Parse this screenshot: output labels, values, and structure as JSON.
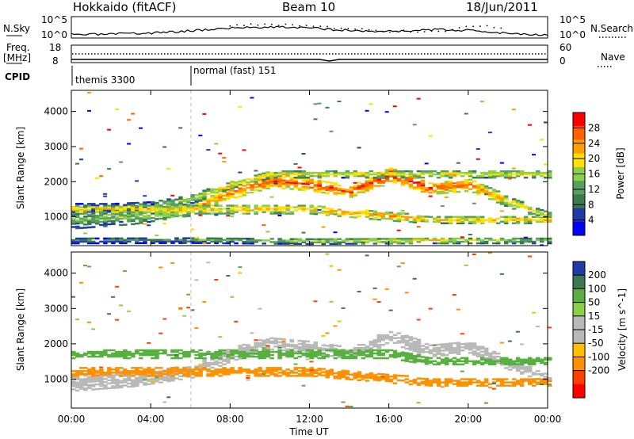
{
  "header": {
    "station": "Hokkaido (fitACF)",
    "beam": "Beam 10",
    "date": "18/Jun/2011"
  },
  "noise_panel": {
    "left_label": "N.Sky",
    "right_label": "N.Search",
    "left_ticks": [
      "10^5",
      "10^0"
    ],
    "right_ticks": [
      "10^5",
      "10^0"
    ]
  },
  "freq_panel": {
    "left_label": "Freq.",
    "left_unit": "[MHz]",
    "left_ticks": [
      "18",
      "8"
    ],
    "right_label": "Nave",
    "right_ticks": [
      "60",
      "0"
    ]
  },
  "cpid_panel": {
    "label": "CPID",
    "segments": [
      {
        "name": "themis 3300",
        "start_hour": 0,
        "end_hour": 6
      },
      {
        "name": "normal (fast) 151",
        "start_hour": 6,
        "end_hour": 24
      }
    ]
  },
  "chart_data": [
    {
      "type": "heatmap",
      "name": "power",
      "xlabel": "Time UT",
      "ylabel": "Slant Range [km]",
      "xlim": [
        0,
        24
      ],
      "ylim": [
        180,
        4600
      ],
      "x_ticks": [
        "00:00",
        "04:00",
        "08:00",
        "12:00",
        "16:00",
        "20:00",
        "00:00"
      ],
      "y_ticks": [
        "1000",
        "2000",
        "3000",
        "4000"
      ],
      "colorbar": {
        "label": "Power [dB]",
        "ticks": [
          "4",
          "8",
          "12",
          "16",
          "20",
          "24",
          "28"
        ],
        "range": [
          0,
          32
        ]
      },
      "bands": [
        {
          "hours": [
            0,
            3,
            6,
            8,
            10,
            12,
            14,
            16,
            18,
            20,
            22,
            24
          ],
          "center_km": [
            900,
            1000,
            1200,
            1700,
            2000,
            1900,
            1700,
            2200,
            1800,
            1900,
            1400,
            1000
          ],
          "width_km": [
            500,
            450,
            350,
            400,
            350,
            350,
            300,
            400,
            350,
            350,
            300,
            250
          ],
          "power_db": [
            14,
            16,
            22,
            26,
            28,
            28,
            28,
            30,
            28,
            26,
            22,
            18
          ]
        },
        {
          "hours": [
            0,
            2,
            4,
            6,
            8,
            10
          ],
          "center_km": [
            1250,
            1250,
            1300,
            1500,
            1900,
            2200
          ],
          "width_km": [
            250,
            250,
            250,
            250,
            200,
            200
          ],
          "power_db": [
            12,
            12,
            14,
            18,
            22,
            20
          ]
        },
        {
          "hours": [
            12,
            14,
            16,
            18
          ],
          "center_km": [
            1200,
            1100,
            1000,
            900
          ],
          "width_km": [
            250,
            250,
            250,
            200
          ],
          "power_db": [
            22,
            24,
            24,
            22
          ]
        },
        {
          "hours": [
            0,
            6,
            12,
            18,
            24
          ],
          "center_km": [
            320,
            330,
            300,
            320,
            320
          ],
          "width_km": [
            180,
            180,
            180,
            180,
            180
          ],
          "power_db": [
            10,
            12,
            16,
            20,
            14
          ]
        }
      ]
    },
    {
      "type": "heatmap",
      "name": "velocity",
      "xlabel": "Time UT",
      "ylabel": "Slant Range [km]",
      "xlim": [
        0,
        24
      ],
      "ylim": [
        180,
        4600
      ],
      "x_ticks": [
        "00:00",
        "04:00",
        "08:00",
        "12:00",
        "16:00",
        "20:00",
        "00:00"
      ],
      "y_ticks": [
        "1000",
        "2000",
        "3000",
        "4000"
      ],
      "colorbar": {
        "label": "Velocity [m s^-1]",
        "ticks": [
          "200",
          "100",
          "50",
          "15",
          "-15",
          "-50",
          "-100",
          "-200"
        ]
      },
      "bands": [
        {
          "hours": [
            0,
            3,
            6,
            8,
            10,
            12,
            14,
            16,
            18,
            20,
            22,
            24
          ],
          "center_km": [
            900,
            1000,
            1200,
            1700,
            2000,
            1900,
            1700,
            2200,
            1800,
            1900,
            1400,
            1000
          ],
          "width_km": [
            500,
            450,
            350,
            400,
            350,
            350,
            300,
            400,
            350,
            350,
            300,
            250
          ],
          "velocity": [
            0,
            0,
            0,
            0,
            0,
            0,
            0,
            0,
            0,
            0,
            0,
            0
          ]
        },
        {
          "hours": [
            12,
            14,
            16,
            18
          ],
          "center_km": [
            1200,
            1100,
            1000,
            900
          ],
          "width_km": [
            250,
            250,
            250,
            200
          ],
          "velocity": [
            -60,
            -60,
            -60,
            -40
          ]
        },
        {
          "hours": [
            16,
            17,
            18
          ],
          "center_km": [
            1700,
            1600,
            1500
          ],
          "width_km": [
            250,
            250,
            200
          ],
          "velocity": [
            40,
            40,
            40
          ]
        }
      ]
    }
  ],
  "colors": {
    "power": [
      "#0000ff",
      "#1e3ca8",
      "#3c7850",
      "#58a060",
      "#8cd048",
      "#ffe000",
      "#ffa000",
      "#ff6000",
      "#ff0000"
    ],
    "velocity_pos": [
      "#1e3ca8",
      "#3c7850",
      "#58b040",
      "#8cd048"
    ],
    "velocity_zero": "#b9b9b9",
    "velocity_neg": [
      "#ffc000",
      "#ff9000",
      "#ff4000",
      "#ff0000"
    ]
  }
}
